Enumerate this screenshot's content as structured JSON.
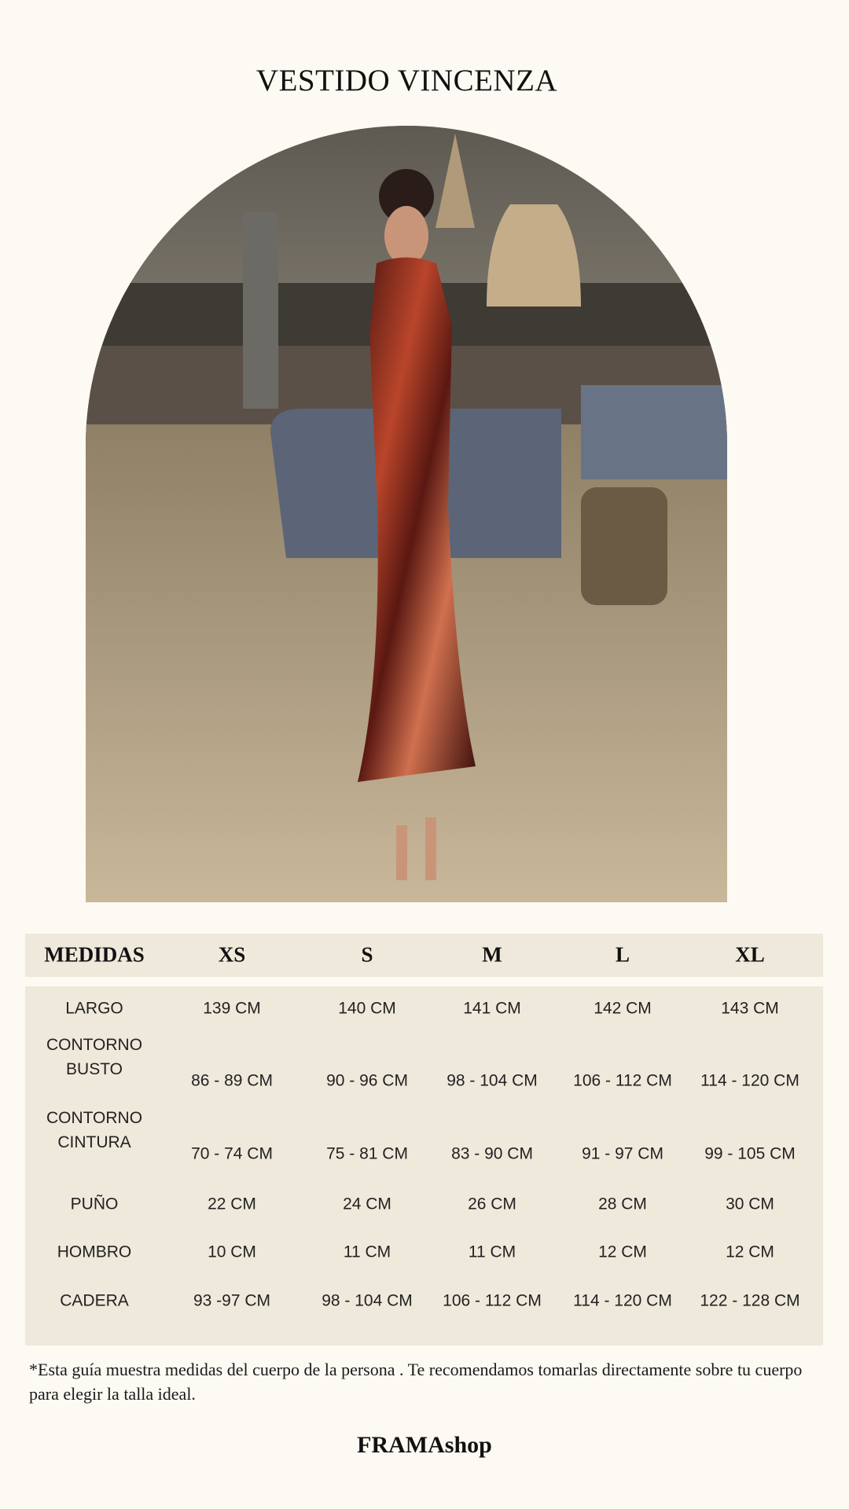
{
  "title": "VESTIDO VINCENZA",
  "photo": {
    "subject": "model-wearing-dress"
  },
  "table": {
    "headers": [
      "MEDIDAS",
      "XS",
      "S",
      "M",
      "L",
      "XL"
    ],
    "rows": [
      {
        "label": [
          "LARGO"
        ],
        "values": [
          "139 CM",
          "140 CM",
          "141 CM",
          "142 CM",
          "143 CM"
        ]
      },
      {
        "label": [
          "CONTORNO",
          "BUSTO"
        ],
        "values": [
          "86 - 89 CM",
          "90 - 96 CM",
          "98 - 104 CM",
          "106 - 112 CM",
          "114 - 120 CM"
        ]
      },
      {
        "label": [
          "CONTORNO",
          "CINTURA"
        ],
        "values": [
          "70 - 74 CM",
          "75 - 81 CM",
          "83 - 90 CM",
          "91 - 97 CM",
          "99 - 105 CM"
        ]
      },
      {
        "label": [
          "PUÑO"
        ],
        "values": [
          "22 CM",
          "24 CM",
          "26 CM",
          "28 CM",
          "30 CM"
        ]
      },
      {
        "label": [
          "HOMBRO"
        ],
        "values": [
          "10 CM",
          "11 CM",
          "11 CM",
          "12 CM",
          "12 CM"
        ]
      },
      {
        "label": [
          "CADERA"
        ],
        "values": [
          "93 -97 CM",
          "98 - 104 CM",
          "106 - 112 CM",
          "114 - 120 CM",
          "122 - 128 CM"
        ]
      }
    ]
  },
  "note": "*Esta guía muestra medidas del cuerpo de la persona . Te recomendamos tomarlas directamente sobre tu cuerpo para elegir la talla ideal.",
  "brand": "FRAMAshop",
  "colors": {
    "background": "#fdf9f3",
    "table_band": "#efe9dc"
  }
}
